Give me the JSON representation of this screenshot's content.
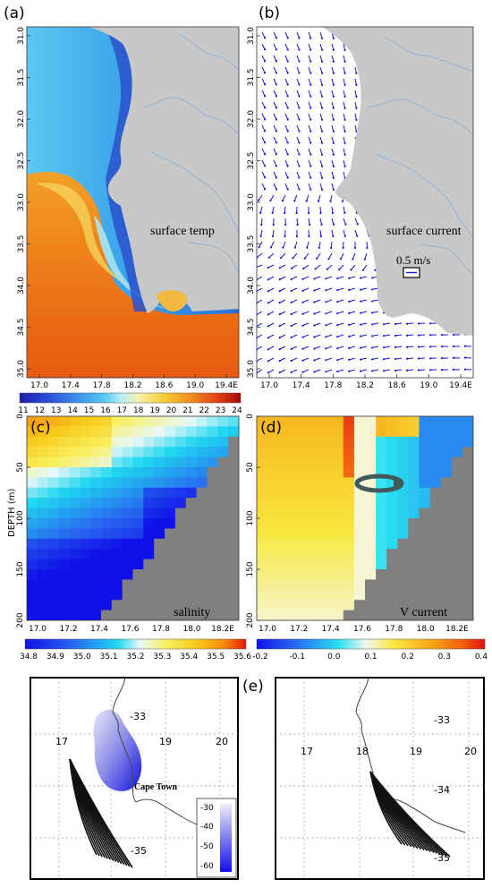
{
  "panels": {
    "a": {
      "label": "(a)",
      "annotation": "surface temp",
      "lat_ticks": [
        "31.0",
        "31.5",
        "32.0",
        "32.5",
        "33.0",
        "33.5",
        "34.0",
        "34.5",
        "35.0"
      ],
      "lon_ticks": [
        "17.0",
        "17.4",
        "17.8",
        "18.2",
        "18.6",
        "19.0",
        "19.4E"
      ],
      "colorbar": {
        "ticks": [
          "11",
          "12",
          "13",
          "14",
          "15",
          "16",
          "17",
          "18",
          "19",
          "20",
          "21",
          "22",
          "23",
          "24"
        ]
      }
    },
    "b": {
      "label": "(b)",
      "annotation": "surface current",
      "scale_label": "0.5 m/s",
      "lat_ticks": [
        "31.0",
        "31.5",
        "32.0",
        "32.5",
        "33.0",
        "33.5",
        "34.0",
        "34.5",
        "35.0"
      ],
      "lon_ticks": [
        "17.0",
        "17.4",
        "17.8",
        "18.2",
        "18.6",
        "19.0",
        "19.4E"
      ],
      "arrow_color": "#1515d8"
    },
    "c": {
      "label": "(c)",
      "annotation": "salinity",
      "ylabel": "DEPTH (m)",
      "depth_ticks": [
        "0",
        "50",
        "100",
        "150",
        "200"
      ],
      "lon_ticks": [
        "17.0",
        "17.2",
        "17.4",
        "17.6",
        "17.8",
        "18.0",
        "18.2E"
      ],
      "colorbar": {
        "ticks": [
          "34.8",
          "34.9",
          "35.0",
          "35.1",
          "35.2",
          "35.3",
          "35.4",
          "35.5",
          "35.6"
        ]
      }
    },
    "d": {
      "label": "(d)",
      "annotation": "V current",
      "depth_ticks": [
        "0",
        "50",
        "100",
        "150",
        "200"
      ],
      "lon_ticks": [
        "17.0",
        "17.2",
        "17.4",
        "17.6",
        "17.8",
        "18.0",
        "18.2E"
      ],
      "colorbar": {
        "ticks": [
          "-0.2",
          "-0.1",
          "0.0",
          "0.1",
          "0.2",
          "0.3",
          "0.4"
        ]
      }
    },
    "e": {
      "label": "(e)",
      "left": {
        "lon_labels": [
          "17",
          "19",
          "20"
        ],
        "lat_labels": [
          "-33",
          "-35"
        ],
        "place": "Cape Town",
        "legend_ticks": [
          "-30",
          "-40",
          "-50",
          "-60"
        ]
      },
      "right": {
        "lon_labels": [
          "17",
          "18",
          "19",
          "20"
        ],
        "lat_labels": [
          "-33",
          "-34",
          "-35"
        ]
      }
    }
  },
  "colors": {
    "land": "#c8c8c8",
    "river": "#8fb3d6",
    "grid_line": "#888888",
    "trajectory": "#111111"
  },
  "chart_data": [
    {
      "type": "heatmap",
      "panel": "a",
      "title": "surface temp",
      "xlim": [
        16.8,
        19.45
      ],
      "ylim": [
        31.0,
        35.15
      ],
      "x_ticks": [
        17.0,
        17.4,
        17.8,
        18.2,
        18.6,
        19.0,
        19.4
      ],
      "y_ticks": [
        31.0,
        31.5,
        32.0,
        32.5,
        33.0,
        33.5,
        34.0,
        34.5,
        35.0
      ],
      "colorbar_range": [
        11,
        24
      ],
      "description_values": {
        "offshore_shelf_temp": 15,
        "agulhas_warm_water": 21.5,
        "upwelling_core": 12
      }
    },
    {
      "type": "scatter",
      "panel": "b",
      "title": "surface current",
      "xlim": [
        16.8,
        19.45
      ],
      "ylim": [
        31.0,
        35.15
      ],
      "vector_scale_ms": 0.5
    },
    {
      "type": "heatmap",
      "panel": "c",
      "title": "salinity",
      "ylabel": "DEPTH (m)",
      "xlim": [
        16.85,
        18.35
      ],
      "ylim": [
        0,
        200
      ],
      "x_ticks": [
        17.0,
        17.2,
        17.4,
        17.6,
        17.8,
        18.0,
        18.2
      ],
      "y_ticks": [
        0,
        50,
        100,
        150,
        200
      ],
      "colorbar_range": [
        34.75,
        35.65
      ]
    },
    {
      "type": "heatmap",
      "panel": "d",
      "title": "V current",
      "xlim": [
        16.85,
        18.35
      ],
      "ylim": [
        0,
        200
      ],
      "x_ticks": [
        17.0,
        17.2,
        17.4,
        17.6,
        17.8,
        18.0,
        18.2
      ],
      "y_ticks": [
        0,
        50,
        100,
        150,
        200
      ],
      "colorbar_range": [
        -0.25,
        0.4
      ]
    }
  ]
}
